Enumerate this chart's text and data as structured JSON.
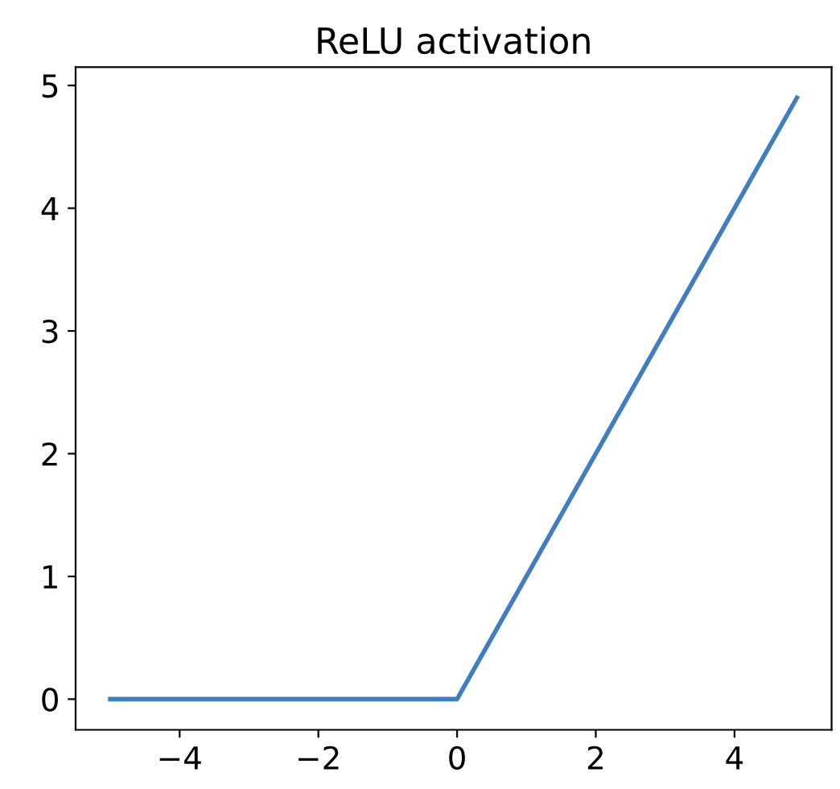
{
  "chart_data": {
    "type": "line",
    "title": "ReLU activation",
    "x": [
      -5,
      0,
      4.9
    ],
    "series": [
      {
        "color": "#3f7fbf",
        "values": [
          0,
          0,
          4.9
        ]
      }
    ],
    "xlim": [
      -5.5,
      5.4
    ],
    "ylim": [
      -0.25,
      5.15
    ],
    "xticks": [
      {
        "value": -4,
        "label": "−4"
      },
      {
        "value": -2,
        "label": "−2"
      },
      0,
      2,
      4
    ],
    "yticks": [
      0,
      1,
      2,
      3,
      4,
      5
    ],
    "grid": false,
    "legend": false,
    "marker": "none",
    "line_style": "solid"
  }
}
